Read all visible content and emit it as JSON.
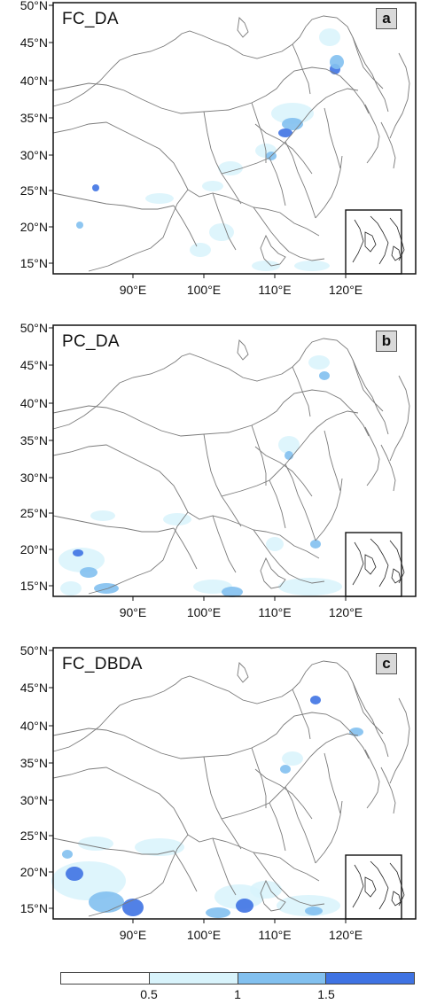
{
  "panels": [
    {
      "title": "FC_DA",
      "letter": "a"
    },
    {
      "title": "PC_DA",
      "letter": "b"
    },
    {
      "title": "FC_DBDA",
      "letter": "c"
    }
  ],
  "axes": {
    "lat_labels": [
      "50°N",
      "45°N",
      "40°N",
      "35°N",
      "30°N",
      "25°N",
      "20°N",
      "15°N"
    ],
    "lon_labels": [
      "90°E",
      "100°E",
      "110°E",
      "120°E"
    ]
  },
  "legend": {
    "tick_labels": [
      "0.5",
      "1",
      "1.5"
    ],
    "colors": [
      "#ffffff",
      "#d8f3fb",
      "#82c0ef",
      "#3f73e3"
    ]
  },
  "colors": {
    "border": "#7a7a7a",
    "frame": "#111111",
    "low": "#d8f3fb",
    "mid": "#82c0ef",
    "high": "#3f73e3"
  }
}
